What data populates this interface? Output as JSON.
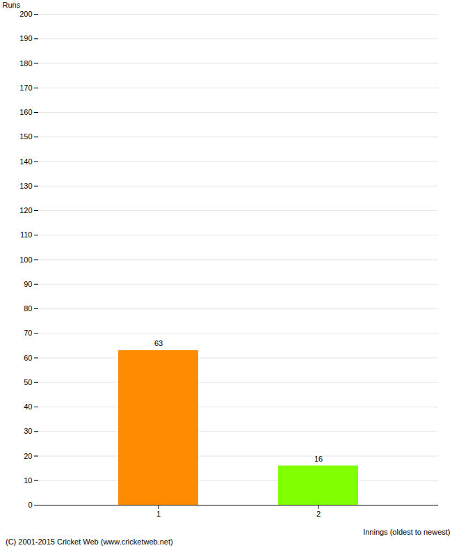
{
  "chart_data": {
    "type": "bar",
    "categories": [
      "1",
      "2"
    ],
    "values": [
      63,
      16
    ],
    "colors": [
      "#ff8c00",
      "#7fff00"
    ],
    "ylabel": "Runs",
    "xlabel": "Innings (oldest to newest)",
    "ylim": [
      0,
      200
    ],
    "yticks": [
      0,
      10,
      20,
      30,
      40,
      50,
      60,
      70,
      80,
      90,
      100,
      110,
      120,
      130,
      140,
      150,
      160,
      170,
      180,
      190,
      200
    ],
    "grid": true,
    "data_labels": true,
    "caption": "(C) 2001-2015 Cricket Web (www.cricketweb.net)"
  }
}
